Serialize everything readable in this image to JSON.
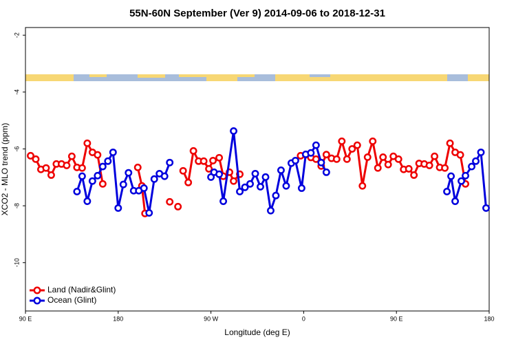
{
  "chart_data": {
    "type": "line",
    "title": "55N-60N September (Ver 9)   2014-09-06 to 2018-12-31",
    "x_label": "Longitude (deg E)",
    "y_label": "XCO2 - MLO trend (ppm)",
    "xlim": [
      90,
      540
    ],
    "ylim": [
      -11.7,
      -1.73
    ],
    "xticks": [
      {
        "value": 90,
        "label": "90 E"
      },
      180,
      {
        "value": 270,
        "label": "90 W"
      },
      {
        "value": 360,
        "label": "0"
      },
      {
        "value": 450,
        "label": "90 E"
      },
      {
        "value": 540,
        "label": "180"
      }
    ],
    "yticks": [
      -2,
      -4,
      -6,
      -8,
      -10
    ],
    "legend": "bottom-left",
    "series": [
      {
        "name": "Land (Nadir&Glint)",
        "color": "#ee0000",
        "x": [
          95,
          100,
          105,
          110,
          115,
          120,
          125,
          130,
          135,
          140,
          145,
          150,
          155,
          160,
          165,
          null,
          199,
          203,
          206,
          null,
          230,
          null,
          238,
          null,
          243,
          248,
          253,
          258,
          263,
          268,
          272,
          278,
          282,
          288,
          292,
          298,
          null,
          357,
          362,
          367,
          372,
          377,
          382,
          387,
          392,
          397,
          402,
          407,
          412,
          417,
          422,
          427,
          432,
          437,
          442,
          447,
          452,
          457,
          462,
          467,
          472,
          477,
          482,
          487,
          492,
          497,
          502,
          507,
          512,
          517
        ],
        "values": [
          -6.24,
          -6.36,
          -6.72,
          -6.67,
          -6.92,
          -6.53,
          -6.53,
          -6.58,
          -6.26,
          -6.65,
          -6.67,
          -5.8,
          -6.12,
          -6.21,
          -7.23,
          null,
          -6.65,
          -7.3,
          -8.27,
          null,
          -7.86,
          null,
          -8.03,
          null,
          -6.77,
          -7.18,
          -6.07,
          -6.43,
          -6.43,
          -6.7,
          -6.41,
          -6.31,
          -6.96,
          -6.82,
          -7.13,
          -6.89,
          null,
          -6.24,
          -6.2,
          -6.3,
          -6.36,
          -6.6,
          -6.2,
          -6.33,
          -6.36,
          -5.73,
          -6.36,
          -6.0,
          -5.87,
          -7.3,
          -6.29,
          -5.73,
          -6.67,
          -6.29,
          -6.55,
          -6.26,
          -6.36,
          -6.72,
          -6.7,
          -6.92,
          -6.51,
          -6.53,
          -6.58,
          -6.26,
          -6.65,
          -6.67,
          -5.8,
          -6.12,
          -6.21,
          -7.23
        ]
      },
      {
        "name": "Ocean (Glint)",
        "color": "#0000dd",
        "x": [
          140,
          145,
          150,
          155,
          160,
          165,
          170,
          175,
          180,
          185,
          190,
          195,
          200,
          205,
          210,
          215,
          220,
          225,
          230,
          null,
          270,
          273,
          278,
          282,
          292,
          298,
          303,
          308,
          313,
          318,
          323,
          328,
          333,
          338,
          343,
          348,
          352,
          358,
          362,
          367,
          372,
          377,
          382,
          null,
          499,
          503,
          507,
          513,
          517,
          523,
          527,
          532,
          537
        ],
        "values": [
          -7.5,
          -6.96,
          -7.84,
          -7.13,
          -6.94,
          -6.62,
          -6.43,
          -6.12,
          -8.08,
          -7.25,
          -6.84,
          -7.47,
          -7.47,
          -7.38,
          -8.25,
          -7.06,
          -6.87,
          -6.96,
          -6.48,
          null,
          -6.99,
          -6.82,
          -6.89,
          -7.84,
          -5.37,
          -7.5,
          -7.35,
          -7.23,
          -6.87,
          -7.33,
          -6.99,
          -8.17,
          -7.64,
          -6.75,
          -7.3,
          -6.5,
          -6.41,
          -7.38,
          -6.19,
          -6.14,
          -5.87,
          -6.48,
          -6.82,
          null,
          -7.5,
          -6.96,
          -7.84,
          -7.13,
          -6.94,
          -6.62,
          -6.43,
          -6.12,
          -8.08
        ]
      }
    ]
  }
}
